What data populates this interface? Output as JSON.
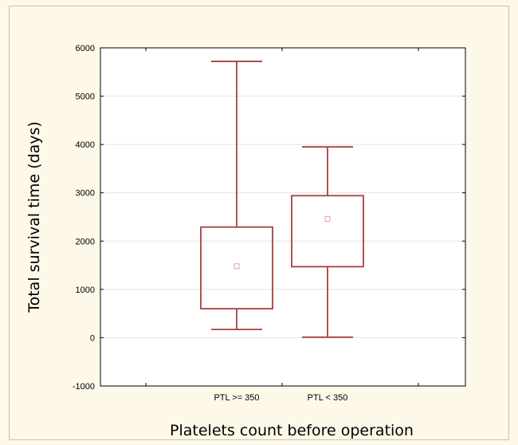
{
  "chart_data": {
    "type": "box",
    "title": "",
    "xlabel": "Platelets count before operation",
    "ylabel": "Total survival time (days)",
    "categories": [
      "PTL >= 350",
      "PTL < 350"
    ],
    "ylim": [
      -1000,
      6000
    ],
    "yticks": [
      -1000,
      0,
      1000,
      2000,
      3000,
      4000,
      5000,
      6000
    ],
    "yticks_labels": [
      "-1000",
      "0",
      "1000",
      "2000",
      "3000",
      "4000",
      "5000",
      "6000"
    ],
    "boxes": [
      {
        "whisker_low": 170,
        "q1": 600,
        "center": 1480,
        "q3": 2290,
        "whisker_high": 5720
      },
      {
        "whisker_low": 10,
        "q1": 1470,
        "center": 2460,
        "q3": 2940,
        "whisker_high": 3950
      }
    ],
    "grid": true,
    "colors": {
      "box": "#a84040",
      "center_marker": "#e8a0a0",
      "grid": "#e4e4e4",
      "background": "#fdf8e8"
    }
  }
}
